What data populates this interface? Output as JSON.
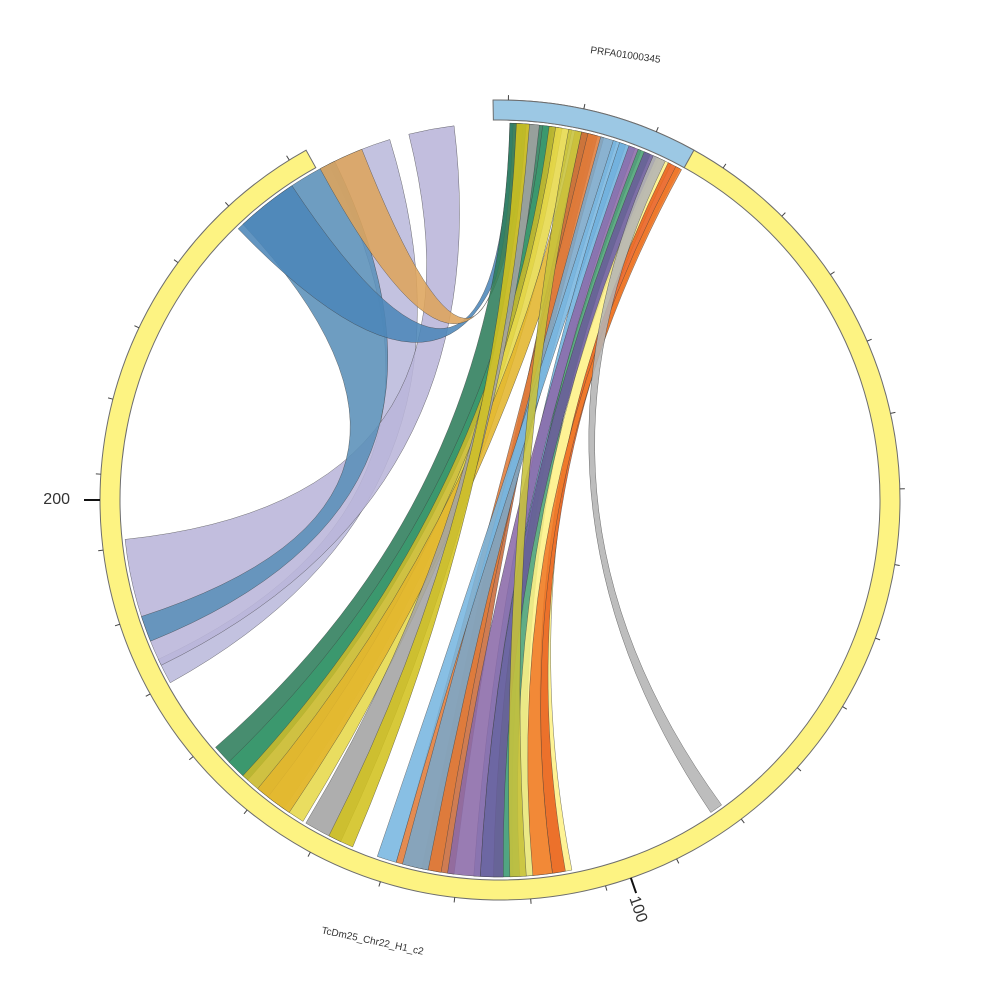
{
  "colors": {
    "chr22": "#fdf382",
    "prfa": "#9cc8e4",
    "outline": "#6d6d6d"
  },
  "chart_data": {
    "type": "chord",
    "segments": [
      {
        "id": "chr22",
        "label": "TcDm25_Chr22_H1_c2",
        "start_deg": 1.2,
        "end_deg": 331.0,
        "color": "#fdf382",
        "tick_labels": [
          {
            "label": "100",
            "deg": 160.9
          },
          {
            "label": "200",
            "deg": 270.0
          }
        ]
      },
      {
        "id": "prfa",
        "label": "PRFA01000345",
        "start_deg": 359.0,
        "end_deg": 29.0,
        "color": "#9cc8e4"
      }
    ],
    "links": [
      {
        "a": [
          343.0,
          333.0
        ],
        "b": [
          245.0,
          241.0
        ],
        "color": "#bbb9dc"
      },
      {
        "a": [
          353.0,
          346.0
        ],
        "b": [
          264.0,
          244.0
        ],
        "color": "#b9b5d9"
      },
      {
        "a": [
          334.0,
          317.0
        ],
        "b": [
          252.0,
          248.0
        ],
        "color": "#5a8fb8"
      },
      {
        "a": [
          326.5,
          316.0
        ],
        "b": [
          4.0,
          1.5
        ],
        "color": "#4c86b8"
      },
      {
        "a": [
          338.5,
          331.5
        ],
        "b": [
          3.5,
          2.0
        ],
        "color": "#dda45c"
      },
      {
        "a": [
          8.0,
          1.5
        ],
        "b": [
          229.0,
          223.0
        ],
        "color": "#2e7d5b"
      },
      {
        "a": [
          9.0,
          6.5
        ],
        "b": [
          226.0,
          222.0
        ],
        "color": "#3a9a6e"
      },
      {
        "a": [
          9.5,
          7.5
        ],
        "b": [
          223.0,
          215.0
        ],
        "color": "#c8b828"
      },
      {
        "a": [
          11.0,
          8.5
        ],
        "b": [
          218.0,
          211.5
        ],
        "color": "#e6d84a"
      },
      {
        "a": [
          14.5,
          11.5
        ],
        "b": [
          220.0,
          214.0
        ],
        "color": "#e2b52c"
      },
      {
        "a": [
          15.0,
          12.5
        ],
        "b": [
          192.0,
          187.0
        ],
        "color": "#c86a3a"
      },
      {
        "a": [
          16.0,
          13.5
        ],
        "b": [
          196.0,
          189.0
        ],
        "color": "#e07b39"
      },
      {
        "a": [
          18.0,
          15.5
        ],
        "b": [
          195.0,
          191.0
        ],
        "color": "#7aa7c9"
      },
      {
        "a": [
          19.5,
          17.5
        ],
        "b": [
          199.0,
          196.0
        ],
        "color": "#78b6e0"
      },
      {
        "a": [
          21.0,
          18.5
        ],
        "b": [
          184.0,
          178.0
        ],
        "color": "#6fb0dd"
      },
      {
        "a": [
          22.0,
          20.0
        ],
        "b": [
          188.0,
          183.0
        ],
        "color": "#8b6aa8"
      },
      {
        "a": [
          23.5,
          21.5
        ],
        "b": [
          181.0,
          175.0
        ],
        "color": "#4aa274"
      },
      {
        "a": [
          25.0,
          22.5
        ],
        "b": [
          183.0,
          179.5
        ],
        "color": "#6a5b9a"
      },
      {
        "a": [
          27.0,
          24.5
        ],
        "b": [
          177.0,
          169.0
        ],
        "color": "#fef186"
      },
      {
        "a": [
          28.5,
          26.5
        ],
        "b": [
          172.0,
          170.0
        ],
        "color": "#e95e1d"
      },
      {
        "a": [
          28.8,
          27.8
        ],
        "b": [
          175.0,
          172.0
        ],
        "color": "#f07a2a"
      },
      {
        "a": [
          12.5,
          10.5
        ],
        "b": [
          178.5,
          176.0
        ],
        "color": "#c7c23b"
      },
      {
        "a": [
          26.0,
          24.0
        ],
        "b": [
          146.0,
          144.0
        ],
        "color": "#b4b4b4"
      },
      {
        "a": [
          6.0,
          4.0
        ],
        "b": [
          211.0,
          205.0
        ],
        "color": "#a3a3a3"
      },
      {
        "a": [
          4.5,
          2.5
        ],
        "b": [
          207.0,
          203.0
        ],
        "color": "#d1c21f"
      }
    ]
  }
}
